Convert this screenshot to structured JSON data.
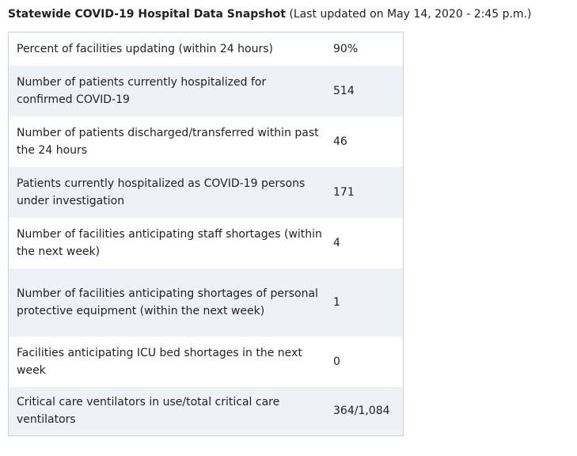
{
  "heading": {
    "title": "Statewide COVID-19 Hospital Data Snapshot",
    "updated": "(Last updated on May 14, 2020 - 2:45 p.m.)"
  },
  "rows": [
    {
      "label": "Percent of facilities updating (within 24 hours)",
      "value": "90%"
    },
    {
      "label": "Number of patients currently hospitalized for confirmed COVID-19",
      "value": "514"
    },
    {
      "label": "Number of patients discharged/transferred within past the 24 hours",
      "value": "46"
    },
    {
      "label": "Patients currently hospitalized as COVID-19 persons under investigation",
      "value": "171"
    },
    {
      "label": "Number of facilities anticipating staff shortages (within the next week)",
      "value": "4"
    },
    {
      "label": "Number of facilities anticipating shortages of personal protective equipment (within the next week)",
      "value": "1"
    },
    {
      "label": "Facilities anticipating ICU bed shortages in the next week",
      "value": "0"
    },
    {
      "label": "Critical care ventilators in use/total critical care ventilators",
      "value": "364/1,084"
    }
  ]
}
